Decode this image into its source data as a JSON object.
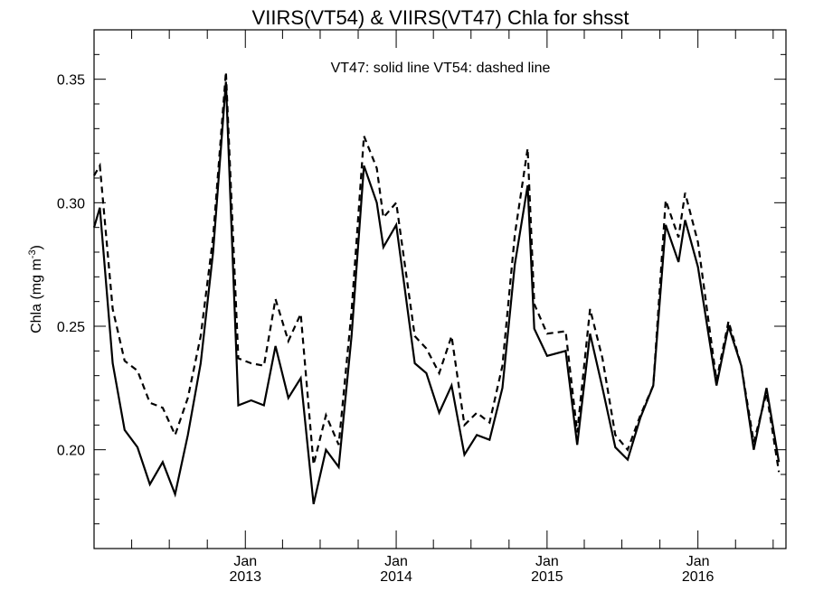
{
  "chart_data": {
    "type": "line",
    "title": "VIIRS(VT54) & VIIRS(VT47)  Chla for shsst",
    "ylabel_main": "Chla (mg m",
    "ylabel_sup": "-3",
    "ylabel_tail": ")",
    "annotation": "VT47: solid line   VT54: dashed line",
    "xlim": [
      "2012-01",
      "2016-08"
    ],
    "ylim": [
      0.16,
      0.37
    ],
    "y_ticks": [
      {
        "value": 0.2,
        "label": "0.20"
      },
      {
        "value": 0.25,
        "label": "0.25"
      },
      {
        "value": 0.3,
        "label": "0.30"
      },
      {
        "value": 0.35,
        "label": "0.35"
      }
    ],
    "y_minor_step": 0.01,
    "x_major_ticks": [
      {
        "date": "2013-01",
        "month": "Jan",
        "year": "2013"
      },
      {
        "date": "2014-01",
        "month": "Jan",
        "year": "2014"
      },
      {
        "date": "2015-01",
        "month": "Jan",
        "year": "2015"
      },
      {
        "date": "2016-01",
        "month": "Jan",
        "year": "2016"
      }
    ],
    "x_minor_ticks": [
      "2012-04",
      "2012-07",
      "2012-10",
      "2013-04",
      "2013-07",
      "2013-10",
      "2014-04",
      "2014-07",
      "2014-10",
      "2015-04",
      "2015-07",
      "2015-10",
      "2016-04",
      "2016-07"
    ],
    "grid": false,
    "series": [
      {
        "line_style": "solid",
        "color": "#000000",
        "points": [
          [
            "2012-01-01",
            0.29
          ],
          [
            "2012-01-15",
            0.298
          ],
          [
            "2012-02-15",
            0.235
          ],
          [
            "2012-03-15",
            0.208
          ],
          [
            "2012-04-15",
            0.201
          ],
          [
            "2012-05-15",
            0.186
          ],
          [
            "2012-06-15",
            0.195
          ],
          [
            "2012-07-15",
            0.182
          ],
          [
            "2012-08-15",
            0.206
          ],
          [
            "2012-09-15",
            0.235
          ],
          [
            "2012-10-15",
            0.28
          ],
          [
            "2012-11-15",
            0.349
          ],
          [
            "2012-12-15",
            0.218
          ],
          [
            "2013-01-15",
            0.22
          ],
          [
            "2013-02-15",
            0.218
          ],
          [
            "2013-03-15",
            0.242
          ],
          [
            "2013-04-15",
            0.221
          ],
          [
            "2013-05-15",
            0.229
          ],
          [
            "2013-06-15",
            0.178
          ],
          [
            "2013-07-15",
            0.2
          ],
          [
            "2013-08-15",
            0.193
          ],
          [
            "2013-09-15",
            0.246
          ],
          [
            "2013-10-15",
            0.315
          ],
          [
            "2013-11-15",
            0.3
          ],
          [
            "2013-12-01",
            0.282
          ],
          [
            "2014-01-01",
            0.291
          ],
          [
            "2014-02-15",
            0.235
          ],
          [
            "2014-03-15",
            0.231
          ],
          [
            "2014-04-15",
            0.215
          ],
          [
            "2014-05-15",
            0.226
          ],
          [
            "2014-06-15",
            0.198
          ],
          [
            "2014-07-15",
            0.206
          ],
          [
            "2014-08-15",
            0.204
          ],
          [
            "2014-09-15",
            0.225
          ],
          [
            "2014-10-15",
            0.275
          ],
          [
            "2014-11-15",
            0.307
          ],
          [
            "2014-12-01",
            0.249
          ],
          [
            "2015-01-01",
            0.238
          ],
          [
            "2015-02-15",
            0.24
          ],
          [
            "2015-03-15",
            0.202
          ],
          [
            "2015-04-15",
            0.247
          ],
          [
            "2015-05-15",
            0.225
          ],
          [
            "2015-06-15",
            0.201
          ],
          [
            "2015-07-15",
            0.196
          ],
          [
            "2015-08-15",
            0.213
          ],
          [
            "2015-09-15",
            0.226
          ],
          [
            "2015-10-15",
            0.291
          ],
          [
            "2015-11-15",
            0.276
          ],
          [
            "2015-12-01",
            0.293
          ],
          [
            "2016-01-01",
            0.274
          ],
          [
            "2016-02-15",
            0.226
          ],
          [
            "2016-03-15",
            0.25
          ],
          [
            "2016-04-15",
            0.234
          ],
          [
            "2016-05-15",
            0.2
          ],
          [
            "2016-06-15",
            0.225
          ],
          [
            "2016-07-15",
            0.195
          ]
        ]
      },
      {
        "line_style": "dashed",
        "color": "#000000",
        "points": [
          [
            "2012-01-01",
            0.311
          ],
          [
            "2012-01-15",
            0.315
          ],
          [
            "2012-02-15",
            0.257
          ],
          [
            "2012-03-15",
            0.236
          ],
          [
            "2012-04-15",
            0.232
          ],
          [
            "2012-05-15",
            0.219
          ],
          [
            "2012-06-15",
            0.217
          ],
          [
            "2012-07-15",
            0.206
          ],
          [
            "2012-08-15",
            0.221
          ],
          [
            "2012-09-15",
            0.246
          ],
          [
            "2012-10-15",
            0.286
          ],
          [
            "2012-11-15",
            0.353
          ],
          [
            "2012-12-15",
            0.237
          ],
          [
            "2013-01-15",
            0.235
          ],
          [
            "2013-02-15",
            0.234
          ],
          [
            "2013-03-15",
            0.261
          ],
          [
            "2013-04-15",
            0.244
          ],
          [
            "2013-05-15",
            0.255
          ],
          [
            "2013-06-15",
            0.194
          ],
          [
            "2013-07-15",
            0.214
          ],
          [
            "2013-08-15",
            0.202
          ],
          [
            "2013-09-15",
            0.256
          ],
          [
            "2013-10-15",
            0.327
          ],
          [
            "2013-11-15",
            0.314
          ],
          [
            "2013-12-01",
            0.294
          ],
          [
            "2014-01-01",
            0.3
          ],
          [
            "2014-02-15",
            0.246
          ],
          [
            "2014-03-15",
            0.241
          ],
          [
            "2014-04-15",
            0.231
          ],
          [
            "2014-05-15",
            0.246
          ],
          [
            "2014-06-15",
            0.21
          ],
          [
            "2014-07-15",
            0.215
          ],
          [
            "2014-08-15",
            0.211
          ],
          [
            "2014-09-15",
            0.234
          ],
          [
            "2014-10-15",
            0.287
          ],
          [
            "2014-11-15",
            0.322
          ],
          [
            "2014-12-01",
            0.259
          ],
          [
            "2015-01-01",
            0.247
          ],
          [
            "2015-02-15",
            0.248
          ],
          [
            "2015-03-15",
            0.207
          ],
          [
            "2015-04-15",
            0.257
          ],
          [
            "2015-05-15",
            0.237
          ],
          [
            "2015-06-15",
            0.206
          ],
          [
            "2015-07-15",
            0.2
          ],
          [
            "2015-08-15",
            0.214
          ],
          [
            "2015-09-15",
            0.226
          ],
          [
            "2015-10-15",
            0.301
          ],
          [
            "2015-11-15",
            0.286
          ],
          [
            "2015-12-01",
            0.304
          ],
          [
            "2016-01-01",
            0.284
          ],
          [
            "2016-02-15",
            0.228
          ],
          [
            "2016-03-15",
            0.252
          ],
          [
            "2016-04-15",
            0.234
          ],
          [
            "2016-05-15",
            0.203
          ],
          [
            "2016-06-15",
            0.223
          ],
          [
            "2016-07-15",
            0.191
          ]
        ]
      }
    ]
  }
}
